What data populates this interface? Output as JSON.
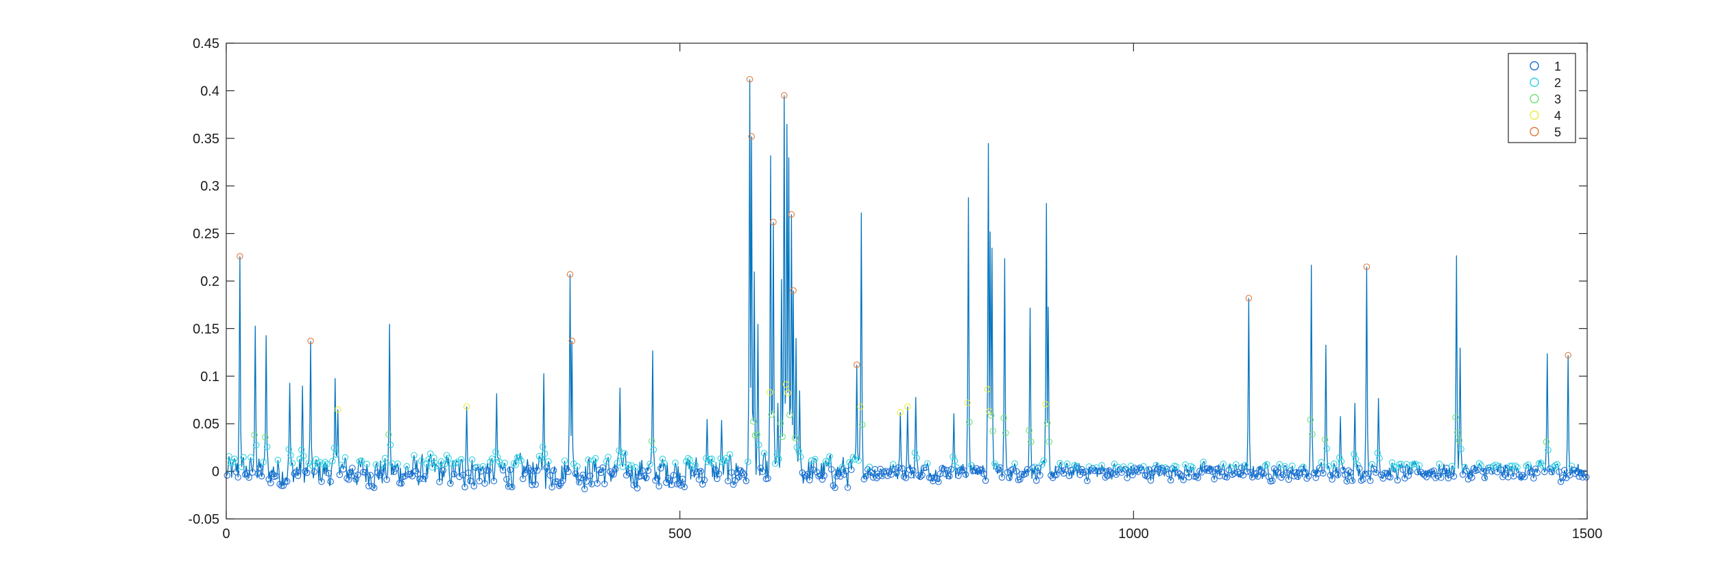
{
  "chart_data": {
    "type": "line",
    "title": "",
    "xlabel": "",
    "ylabel": "",
    "xlim": [
      0,
      1500
    ],
    "ylim": [
      -0.05,
      0.45
    ],
    "x_ticks": [
      0,
      500,
      1000,
      1500
    ],
    "x_tick_labels": [
      "0",
      "500",
      "1000",
      "1500"
    ],
    "y_ticks": [
      -0.05,
      0,
      0.05,
      0.1,
      0.15,
      0.2,
      0.25,
      0.3,
      0.35,
      0.4,
      0.45
    ],
    "y_tick_labels": [
      "-0.05",
      "0",
      "0.05",
      "0.1",
      "0.15",
      "0.2",
      "0.25",
      "0.3",
      "0.35",
      "0.4",
      "0.45"
    ],
    "grid": false,
    "box": true,
    "line_color": "#0072BD",
    "legend": {
      "placement": "top-right",
      "entries": [
        {
          "label": "1",
          "color": "#1f6fd6"
        },
        {
          "label": "2",
          "color": "#2fd3e0"
        },
        {
          "label": "3",
          "color": "#6fe07a"
        },
        {
          "label": "4",
          "color": "#ecec3a"
        },
        {
          "label": "5",
          "color": "#e0793a"
        }
      ]
    },
    "baseline": {
      "lo": -0.015,
      "hi": 0.015,
      "sample_step": 1
    },
    "peaks": [
      [
        15,
        0.226
      ],
      [
        32,
        0.153
      ],
      [
        44,
        0.143
      ],
      [
        70,
        0.093
      ],
      [
        84,
        0.09
      ],
      [
        93,
        0.137
      ],
      [
        120,
        0.098
      ],
      [
        123,
        0.065
      ],
      [
        180,
        0.155
      ],
      [
        265,
        0.068
      ],
      [
        298,
        0.082
      ],
      [
        350,
        0.103
      ],
      [
        379,
        0.207
      ],
      [
        381,
        0.137
      ],
      [
        434,
        0.088
      ],
      [
        470,
        0.127
      ],
      [
        530,
        0.055
      ],
      [
        546,
        0.054
      ],
      [
        577,
        0.412
      ],
      [
        579,
        0.352
      ],
      [
        582,
        0.21
      ],
      [
        586,
        0.155
      ],
      [
        600,
        0.332
      ],
      [
        603,
        0.262
      ],
      [
        608,
        0.072
      ],
      [
        612,
        0.202
      ],
      [
        615,
        0.395
      ],
      [
        618,
        0.365
      ],
      [
        620,
        0.33
      ],
      [
        623,
        0.27
      ],
      [
        625,
        0.19
      ],
      [
        628,
        0.14
      ],
      [
        632,
        0.085
      ],
      [
        695,
        0.112
      ],
      [
        700,
        0.272
      ],
      [
        743,
        0.062
      ],
      [
        751,
        0.068
      ],
      [
        760,
        0.078
      ],
      [
        802,
        0.061
      ],
      [
        818,
        0.288
      ],
      [
        840,
        0.345
      ],
      [
        842,
        0.252
      ],
      [
        844,
        0.235
      ],
      [
        858,
        0.224
      ],
      [
        886,
        0.172
      ],
      [
        904,
        0.282
      ],
      [
        906,
        0.173
      ],
      [
        1127,
        0.182
      ],
      [
        1196,
        0.217
      ],
      [
        1212,
        0.133
      ],
      [
        1228,
        0.058
      ],
      [
        1244,
        0.072
      ],
      [
        1257,
        0.215
      ],
      [
        1270,
        0.077
      ],
      [
        1356,
        0.227
      ],
      [
        1360,
        0.13
      ],
      [
        1456,
        0.124
      ],
      [
        1479,
        0.122
      ]
    ]
  }
}
